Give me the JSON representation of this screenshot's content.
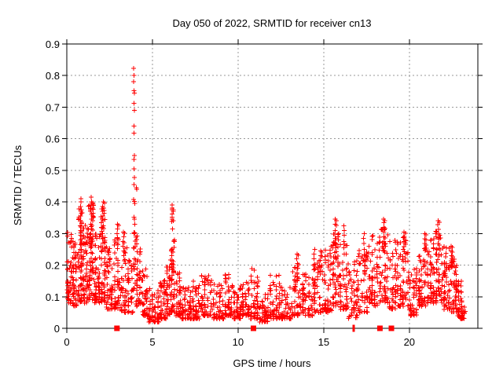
{
  "chart_data": {
    "type": "scatter",
    "title": "Day 050 of 2022, SRMTID for receiver cn13",
    "xlabel": "GPS time / hours",
    "ylabel": "SRMTID / TECUs",
    "xlim": [
      0,
      24
    ],
    "ylim": [
      0,
      0.9
    ],
    "xticks": [
      0,
      5,
      10,
      15,
      20
    ],
    "yticks": [
      0,
      0.1,
      0.2,
      0.3,
      0.4,
      0.5,
      0.6,
      0.7,
      0.8,
      0.9
    ],
    "grid": true,
    "legend": "none",
    "marker": "plus",
    "marker_color": "#ff0000",
    "grid_color": "#999999",
    "axis_color": "#000000",
    "background_color": "#ffffff",
    "seed": 1357911,
    "spike_points": [
      [
        3.9,
        0.823
      ],
      [
        3.93,
        0.8
      ],
      [
        3.91,
        0.781
      ],
      [
        3.93,
        0.752
      ],
      [
        3.95,
        0.745
      ],
      [
        3.92,
        0.712
      ],
      [
        3.94,
        0.69
      ],
      [
        3.92,
        0.64
      ],
      [
        3.93,
        0.618
      ],
      [
        3.94,
        0.547
      ],
      [
        3.92,
        0.535
      ],
      [
        3.93,
        0.505
      ],
      [
        3.95,
        0.477
      ],
      [
        3.93,
        0.455
      ],
      [
        3.91,
        0.408
      ],
      [
        3.94,
        0.402
      ],
      [
        3.96,
        0.395
      ],
      [
        3.92,
        0.352
      ],
      [
        3.95,
        0.345
      ],
      [
        3.93,
        0.3
      ],
      [
        3.9,
        0.255
      ],
      [
        3.94,
        0.22
      ],
      [
        4.05,
        0.445
      ],
      [
        4.08,
        0.44
      ],
      [
        0.45,
        0.095
      ]
    ],
    "streaks": [
      {
        "x": 0.8,
        "ys": [
          0.41,
          0.4,
          0.385,
          0.37,
          0.355,
          0.34,
          0.325,
          0.31,
          0.295,
          0.28,
          0.265,
          0.25
        ]
      },
      {
        "x": 1.42,
        "ys": [
          0.415,
          0.4,
          0.39,
          0.375,
          0.36,
          0.345,
          0.33,
          0.315,
          0.3,
          0.285,
          0.27,
          0.255,
          0.24
        ]
      },
      {
        "x": 2.1,
        "ys": [
          0.4,
          0.385,
          0.37,
          0.355,
          0.34,
          0.32,
          0.3,
          0.285,
          0.27,
          0.255
        ]
      },
      {
        "x": 2.95,
        "ys": [
          0.33,
          0.315,
          0.3,
          0.285,
          0.27
        ]
      },
      {
        "x": 3.3,
        "ys": [
          0.305,
          0.29,
          0.275,
          0.26,
          0.245,
          0.23
        ]
      },
      {
        "x": 6.15,
        "ys": [
          0.39,
          0.38,
          0.375,
          0.362,
          0.352,
          0.345,
          0.338,
          0.315,
          0.245,
          0.23,
          0.215,
          0.205,
          0.195,
          0.185,
          0.155
        ]
      },
      {
        "x": 13.45,
        "ys": [
          0.235,
          0.22,
          0.205,
          0.19,
          0.175,
          0.162,
          0.15
        ]
      },
      {
        "x": 14.45,
        "ys": [
          0.25,
          0.235,
          0.22,
          0.2,
          0.185
        ]
      },
      {
        "x": 14.8,
        "ys": [
          0.245,
          0.23,
          0.215,
          0.198,
          0.182
        ]
      },
      {
        "x": 15.65,
        "ys": [
          0.345,
          0.33,
          0.31,
          0.298,
          0.285,
          0.27,
          0.255,
          0.24,
          0.225
        ]
      },
      {
        "x": 16.2,
        "ys": [
          0.325,
          0.31,
          0.295,
          0.275,
          0.255,
          0.235
        ]
      },
      {
        "x": 17.35,
        "ys": [
          0.3,
          0.285,
          0.268,
          0.25,
          0.232,
          0.215
        ]
      },
      {
        "x": 18.5,
        "ys": [
          0.345,
          0.335,
          0.32,
          0.305,
          0.29,
          0.275,
          0.26,
          0.245
        ]
      },
      {
        "x": 19.7,
        "ys": [
          0.305,
          0.29,
          0.275,
          0.258,
          0.242
        ]
      },
      {
        "x": 20.9,
        "ys": [
          0.3,
          0.284,
          0.268,
          0.252
        ]
      },
      {
        "x": 21.7,
        "ys": [
          0.34,
          0.328,
          0.313,
          0.298,
          0.283,
          0.268,
          0.252
        ]
      },
      {
        "x": 22.45,
        "ys": [
          0.26,
          0.245,
          0.23,
          0.214,
          0.198
        ]
      }
    ],
    "segments": [
      [
        0.0,
        0.3,
        46,
        0.08,
        0.31,
        1.5
      ],
      [
        0.3,
        0.62,
        50,
        0.07,
        0.28,
        1.6
      ],
      [
        0.62,
        0.92,
        55,
        0.08,
        0.38,
        1.6
      ],
      [
        0.92,
        1.25,
        55,
        0.08,
        0.33,
        1.5
      ],
      [
        1.25,
        1.6,
        60,
        0.09,
        0.4,
        1.5
      ],
      [
        1.6,
        1.95,
        52,
        0.08,
        0.3,
        1.6
      ],
      [
        1.95,
        2.3,
        60,
        0.08,
        0.38,
        1.5
      ],
      [
        2.3,
        2.7,
        50,
        0.06,
        0.27,
        1.7
      ],
      [
        2.7,
        3.1,
        46,
        0.06,
        0.3,
        1.8
      ],
      [
        3.1,
        3.5,
        42,
        0.05,
        0.28,
        1.8
      ],
      [
        3.5,
        3.88,
        36,
        0.05,
        0.22,
        1.8
      ],
      [
        3.88,
        4.0,
        16,
        0.12,
        0.34,
        1.3
      ],
      [
        4.0,
        4.35,
        42,
        0.07,
        0.3,
        1.7
      ],
      [
        4.35,
        4.75,
        40,
        0.04,
        0.19,
        1.9
      ],
      [
        4.75,
        5.4,
        58,
        0.02,
        0.13,
        2.0
      ],
      [
        5.4,
        5.8,
        45,
        0.03,
        0.16,
        2.0
      ],
      [
        5.8,
        6.05,
        34,
        0.04,
        0.21,
        1.8
      ],
      [
        6.05,
        6.32,
        40,
        0.05,
        0.3,
        1.8
      ],
      [
        6.32,
        6.7,
        40,
        0.04,
        0.18,
        1.9
      ],
      [
        6.7,
        7.3,
        56,
        0.03,
        0.13,
        2.0
      ],
      [
        7.3,
        7.8,
        50,
        0.03,
        0.15,
        2.0
      ],
      [
        7.8,
        8.5,
        62,
        0.04,
        0.17,
        2.0
      ],
      [
        8.5,
        9.2,
        60,
        0.03,
        0.14,
        2.0
      ],
      [
        9.2,
        9.7,
        50,
        0.04,
        0.17,
        2.0
      ],
      [
        9.7,
        10.2,
        50,
        0.03,
        0.14,
        2.0
      ],
      [
        10.2,
        10.7,
        50,
        0.04,
        0.16,
        2.0
      ],
      [
        10.7,
        11.2,
        50,
        0.03,
        0.19,
        2.0
      ],
      [
        11.2,
        11.8,
        50,
        0.02,
        0.11,
        2.0
      ],
      [
        11.8,
        12.5,
        56,
        0.03,
        0.17,
        2.0
      ],
      [
        12.5,
        13.1,
        50,
        0.03,
        0.13,
        2.0
      ],
      [
        13.1,
        13.7,
        50,
        0.04,
        0.2,
        1.9
      ],
      [
        13.7,
        14.4,
        56,
        0.04,
        0.18,
        1.9
      ],
      [
        14.4,
        15.0,
        50,
        0.05,
        0.22,
        1.8
      ],
      [
        15.0,
        15.5,
        46,
        0.05,
        0.26,
        1.7
      ],
      [
        15.5,
        15.9,
        50,
        0.07,
        0.31,
        1.6
      ],
      [
        15.9,
        16.4,
        50,
        0.06,
        0.28,
        1.7
      ],
      [
        16.4,
        17.0,
        50,
        0.03,
        0.22,
        1.8
      ],
      [
        17.0,
        17.6,
        55,
        0.05,
        0.25,
        1.6
      ],
      [
        17.6,
        18.2,
        60,
        0.07,
        0.3,
        1.5
      ],
      [
        18.2,
        18.8,
        60,
        0.08,
        0.32,
        1.5
      ],
      [
        18.8,
        19.4,
        56,
        0.06,
        0.28,
        1.6
      ],
      [
        19.4,
        20.0,
        55,
        0.07,
        0.29,
        1.6
      ],
      [
        20.0,
        20.5,
        48,
        0.04,
        0.2,
        1.8
      ],
      [
        20.5,
        21.0,
        55,
        0.07,
        0.27,
        1.6
      ],
      [
        21.0,
        21.5,
        55,
        0.08,
        0.29,
        1.5
      ],
      [
        21.5,
        21.95,
        52,
        0.08,
        0.31,
        1.5
      ],
      [
        21.95,
        22.4,
        55,
        0.06,
        0.26,
        1.7
      ],
      [
        22.4,
        22.8,
        50,
        0.05,
        0.22,
        1.7
      ],
      [
        22.8,
        23.1,
        38,
        0.03,
        0.15,
        1.9
      ],
      [
        23.05,
        23.3,
        12,
        0.03,
        0.09,
        1.8
      ]
    ],
    "axis_markers": {
      "squares_x": [
        2.93,
        10.9,
        18.28,
        18.95
      ],
      "bars_x": [
        16.75
      ]
    }
  }
}
